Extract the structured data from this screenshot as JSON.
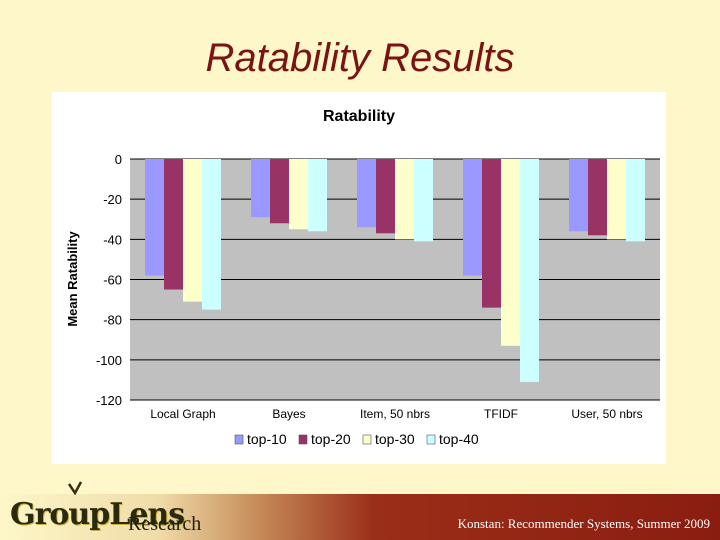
{
  "slide": {
    "title": "Ratability Results",
    "footer": "Konstan: Recommender Systems, Summer 2009"
  },
  "logo": {
    "main": "GroupLens",
    "sub": "Research"
  },
  "colors": {
    "background": "#fdf7c9",
    "title": "#7a1414",
    "plot_area": "#c0c0c0",
    "series": [
      "#9999ff",
      "#993366",
      "#ffffcc",
      "#ccffff"
    ]
  },
  "chart_data": {
    "type": "bar",
    "title": "Ratability",
    "xlabel": "",
    "ylabel": "Mean Ratability",
    "ylim": [
      -120,
      0
    ],
    "yticks": [
      0,
      -20,
      -40,
      -60,
      -80,
      -100,
      -120
    ],
    "yticks_labels": [
      "0",
      "-20",
      "-40",
      "-60",
      "-80",
      "-100",
      "-120"
    ],
    "categories": [
      "Local Graph",
      "Bayes",
      "Item, 50 nbrs",
      "TFIDF",
      "User, 50 nbrs"
    ],
    "series": [
      {
        "name": "top-10",
        "values": [
          -58,
          -29,
          -34,
          -58,
          -36
        ]
      },
      {
        "name": "top-20",
        "values": [
          -65,
          -32,
          -37,
          -74,
          -38
        ]
      },
      {
        "name": "top-30",
        "values": [
          -71,
          -35,
          -40,
          -93,
          -40
        ]
      },
      {
        "name": "top-40",
        "values": [
          -75,
          -36,
          -41,
          -111,
          -41
        ]
      }
    ],
    "grid": true,
    "legend": "bottom"
  }
}
